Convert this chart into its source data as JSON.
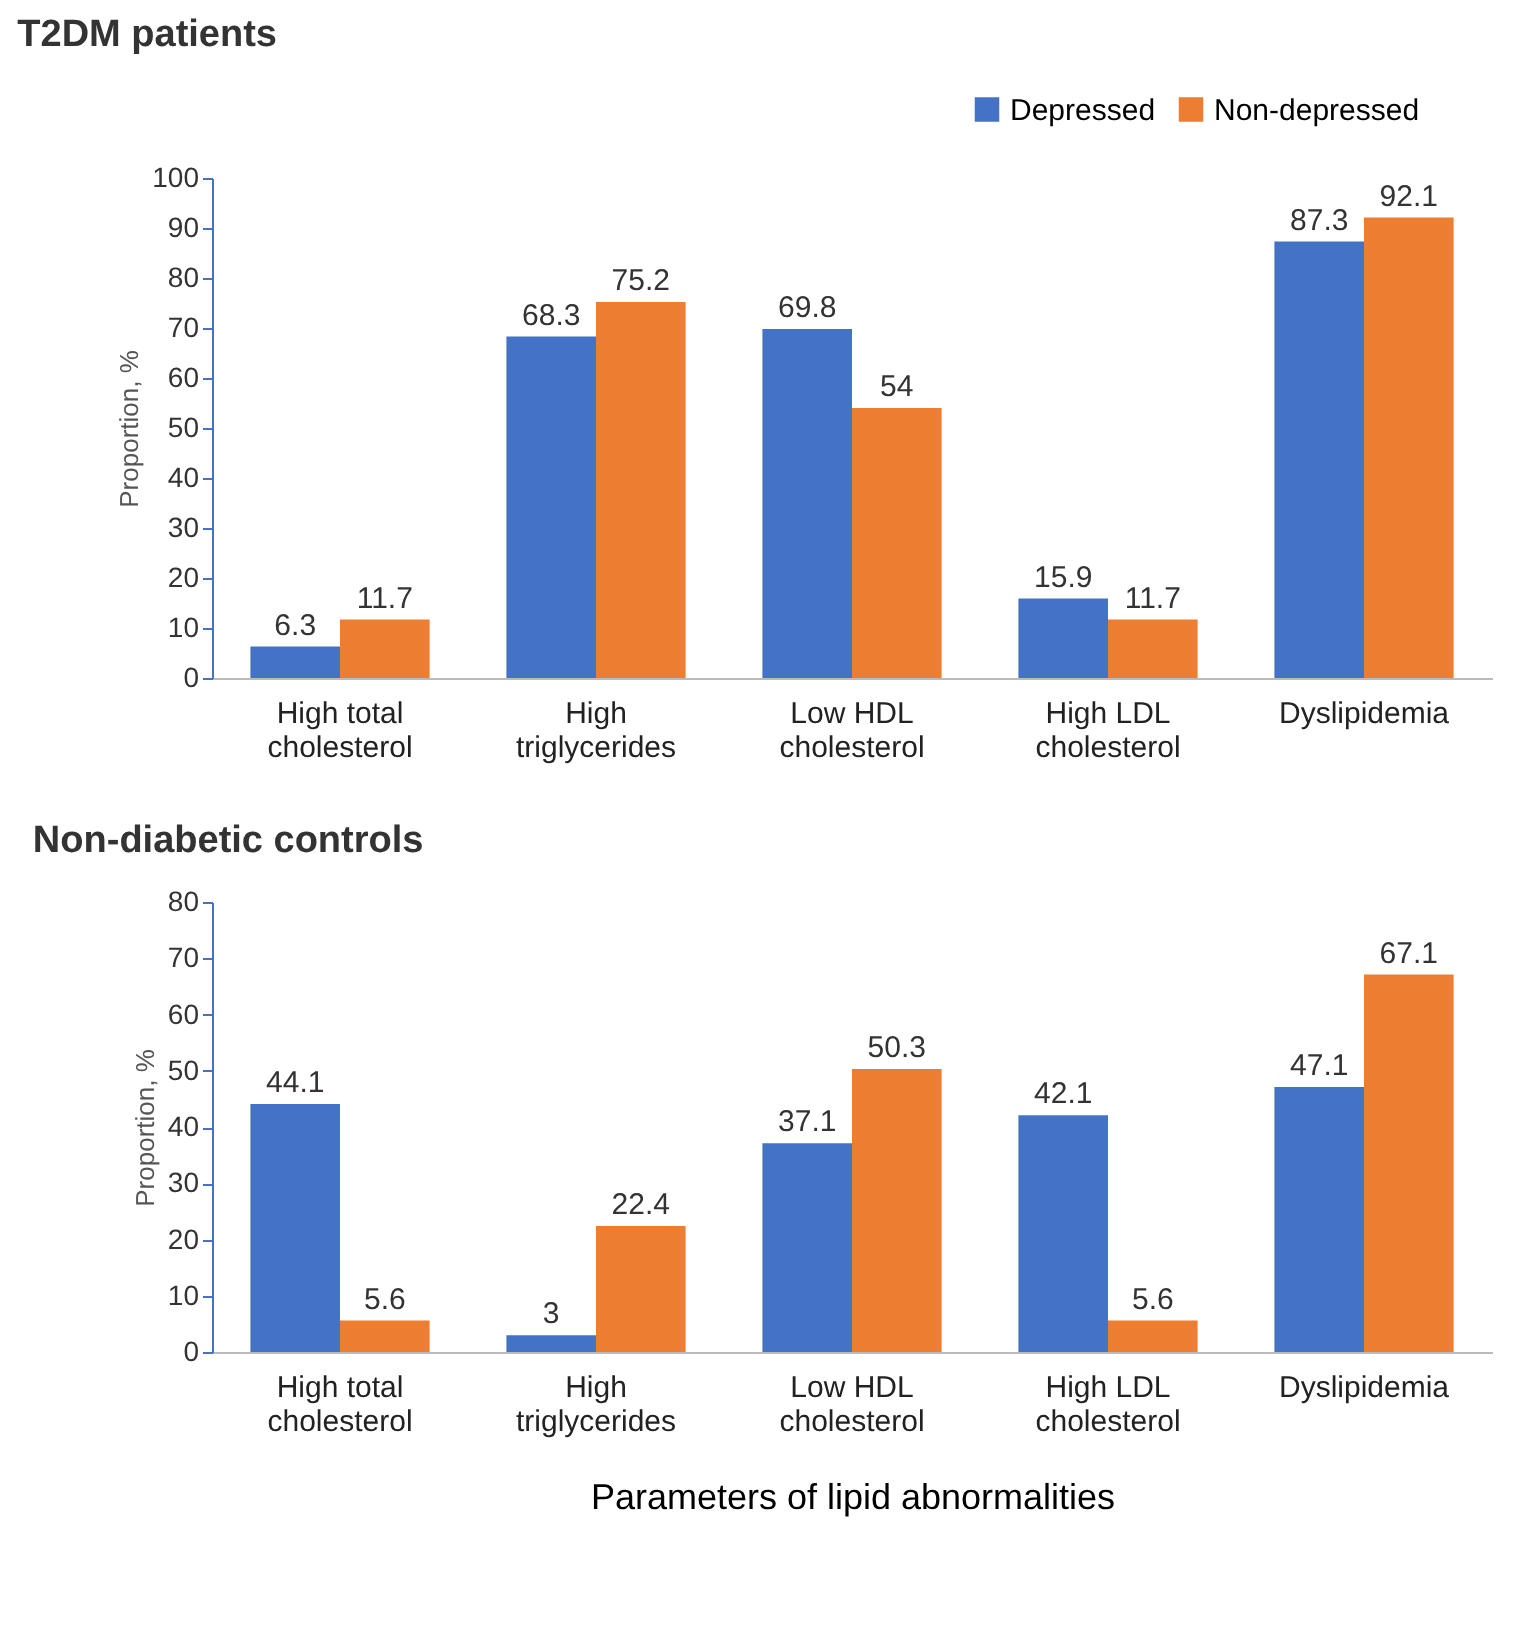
{
  "chart_data": [
    {
      "type": "bar",
      "title": "T2DM patients",
      "ylabel": "Proportion, %",
      "categories": [
        "High total\ncholesterol",
        "High\ntriglycerides",
        "Low HDL\ncholesterol",
        "High LDL\ncholesterol",
        "Dyslipidemia"
      ],
      "series": [
        {
          "name": "Depressed",
          "color": "#4472c4",
          "values": [
            6.3,
            68.3,
            69.8,
            15.9,
            87.3
          ]
        },
        {
          "name": "Non-depressed",
          "color": "#ed7d31",
          "values": [
            11.7,
            75.2,
            54,
            11.7,
            92.1
          ]
        }
      ],
      "ylim": [
        0,
        100
      ],
      "yticks": [
        0,
        10,
        20,
        30,
        40,
        50,
        60,
        70,
        80,
        90,
        100
      ],
      "grid": false,
      "legend": "top right",
      "data_labels": true
    },
    {
      "type": "bar",
      "title": "Non-diabetic controls",
      "ylabel": "Proportion, %",
      "xlabel": "Parameters of lipid abnormalities",
      "categories": [
        "High total\ncholesterol",
        "High\ntriglycerides",
        "Low HDL\ncholesterol",
        "High LDL\ncholesterol",
        "Dyslipidemia"
      ],
      "series": [
        {
          "color": "#4472c4",
          "values": [
            44.1,
            3,
            37.1,
            42.1,
            47.1
          ]
        },
        {
          "color": "#ed7d31",
          "values": [
            5.6,
            22.4,
            50.3,
            5.6,
            67.1
          ]
        }
      ],
      "ylim": [
        0,
        80
      ],
      "yticks": [
        0,
        10,
        20,
        30,
        40,
        50,
        60,
        70,
        80
      ],
      "grid": false,
      "legend": false,
      "data_labels": true
    }
  ]
}
